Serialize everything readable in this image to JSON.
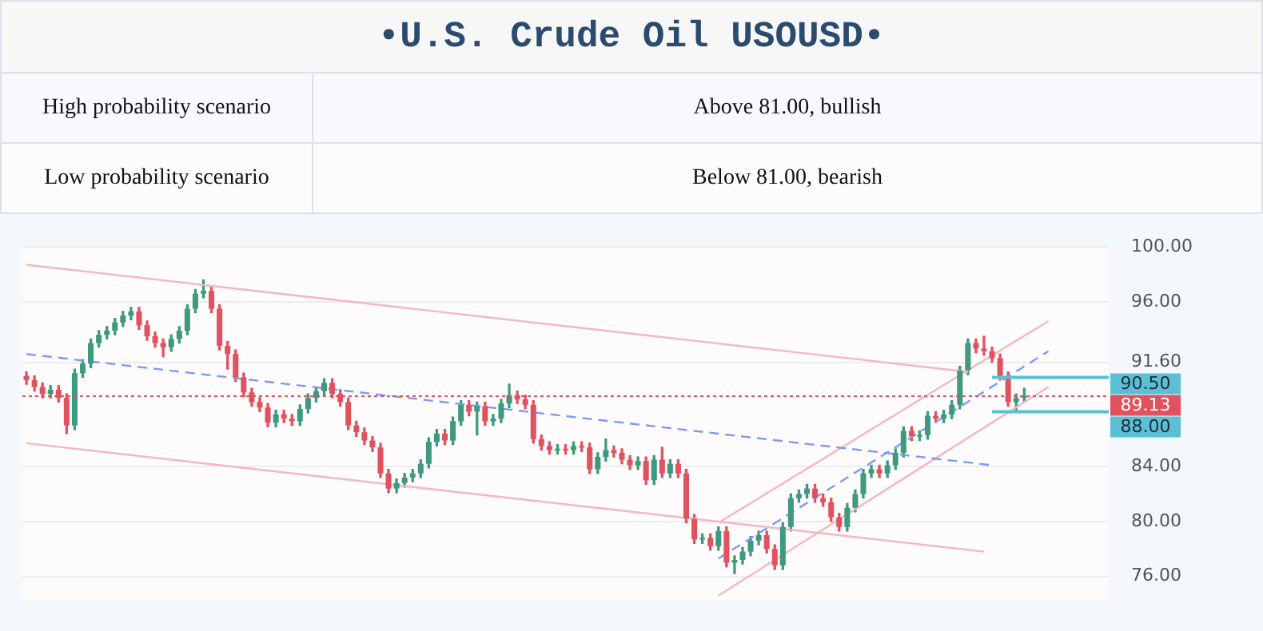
{
  "chart_data": {
    "type": "candlestick",
    "title": "•U.S. Crude Oil USOUSD•",
    "annotations": [
      "High probability scenario",
      "Above 81.00, bullish",
      "Low probability scenario",
      "Below 81.00, bearish"
    ],
    "categories": [
      null,
      null,
      null,
      null,
      null,
      null,
      null,
      null,
      null,
      null,
      null,
      null,
      null,
      null,
      null,
      null,
      null,
      null,
      null,
      null,
      null,
      null,
      null,
      null,
      null,
      null,
      null,
      null,
      null,
      null,
      null,
      null,
      null,
      null,
      null,
      null,
      null,
      null,
      null,
      null,
      null,
      null,
      null,
      null,
      null,
      null,
      null,
      null,
      null,
      null,
      null,
      null,
      null,
      null,
      null,
      null,
      null,
      null,
      null,
      null,
      null,
      null,
      null,
      null,
      null,
      null,
      null,
      null,
      null,
      null,
      null,
      null,
      null,
      null,
      null,
      null,
      null,
      null,
      null,
      null,
      null,
      null,
      null,
      null,
      null,
      null,
      null,
      null,
      null,
      null,
      null,
      null,
      null,
      null,
      null,
      null,
      null,
      null,
      null,
      null,
      null,
      null,
      null,
      null,
      null,
      null,
      null,
      null,
      null,
      null,
      null,
      null,
      null,
      null,
      null,
      null,
      null,
      null,
      null,
      null,
      null,
      null,
      null,
      null,
      null,
      null,
      null,
      null,
      null,
      null,
      null,
      null,
      null,
      null,
      null
    ],
    "ylim": [
      74.3,
      100
    ],
    "yticks": [
      {
        "value": 76,
        "label": "76.00"
      },
      {
        "value": 80,
        "label": "80.00"
      },
      {
        "value": 84,
        "label": "84.00"
      },
      {
        "value": 91.6,
        "label": "91.60"
      },
      {
        "value": 96,
        "label": "96.00"
      },
      {
        "value": 100,
        "label": "100.00"
      }
    ],
    "grid": "y",
    "legend": false,
    "tick_labels": "y",
    "ref_lines": [
      {
        "axis": "y",
        "value": 90.5,
        "label": "90.50",
        "color": "#5bbfd6",
        "line_style": "solid"
      },
      {
        "axis": "y",
        "value": 88,
        "label": "88.00",
        "color": "#5bbfd6",
        "line_style": "solid"
      },
      {
        "axis": "y",
        "value": 89.13,
        "label": "89.13",
        "color": "#e0525e",
        "line_style": "dotted"
      }
    ],
    "series": [
      {
        "colors": [
          "#e0525e",
          "#e0525e",
          "#e0525e",
          "#3d9a7e",
          "#e0525e",
          "#e0525e",
          "#3d9a7e",
          "#3d9a7e",
          "#3d9a7e",
          "#3d9a7e",
          "#3d9a7e",
          "#3d9a7e",
          "#3d9a7e",
          "#3d9a7e",
          "#e0525e",
          "#e0525e",
          "#e0525e",
          "#e0525e",
          "#3d9a7e",
          "#3d9a7e",
          "#3d9a7e",
          "#3d9a7e",
          "#3d9a7e",
          "#e0525e",
          "#e0525e",
          "#e0525e",
          "#e0525e",
          "#e0525e",
          "#e0525e",
          "#e0525e",
          "#e0525e",
          "#3d9a7e",
          "#e0525e",
          "#e0525e",
          "#3d9a7e",
          "#3d9a7e",
          "#3d9a7e",
          "#3d9a7e",
          "#e0525e",
          "#e0525e",
          "#e0525e",
          "#e0525e",
          "#e0525e",
          "#e0525e",
          "#e0525e",
          "#e0525e",
          "#3d9a7e",
          "#3d9a7e",
          "#3d9a7e",
          "#3d9a7e",
          "#3d9a7e",
          "#3d9a7e",
          "#e0525e",
          "#3d9a7e",
          "#3d9a7e",
          "#e0525e",
          "#3d9a7e",
          "#e0525e",
          "#3d9a7e",
          "#3d9a7e",
          "#3d9a7e",
          "#e0525e",
          "#e0525e",
          "#e0525e",
          "#e0525e",
          "#e0525e",
          "#3d9a7e",
          "#e0525e",
          "#3d9a7e",
          "#e0525e",
          "#e0525e",
          "#3d9a7e",
          "#3d9a7e",
          "#e0525e",
          "#e0525e",
          "#e0525e",
          "#3d9a7e",
          "#e0525e",
          "#3d9a7e",
          "#e0525e",
          "#3d9a7e",
          "#e0525e",
          "#e0525e",
          "#e0525e",
          "#3d9a7e",
          "#e0525e",
          "#3d9a7e",
          "#e0525e",
          "#3d9a7e",
          "#3d9a7e",
          "#3d9a7e",
          "#3d9a7e",
          "#e0525e",
          "#e0525e",
          "#3d9a7e",
          "#3d9a7e",
          "#3d9a7e",
          "#3d9a7e",
          "#e0525e",
          "#e0525e",
          "#e0525e",
          "#e0525e",
          "#3d9a7e",
          "#3d9a7e",
          "#3d9a7e",
          "#3d9a7e",
          "#e0525e",
          "#3d9a7e",
          "#3d9a7e",
          "#3d9a7e",
          "#e0525e",
          "#3d9a7e",
          "#3d9a7e",
          "#e0525e",
          "#3d9a7e",
          "#3d9a7e",
          "#3d9a7e",
          "#3d9a7e",
          "#e0525e",
          "#e0525e",
          "#e0525e",
          "#e0525e",
          "#e0525e",
          "#3d9a7e",
          "#3d9a7e",
          null,
          null,
          null,
          null,
          null,
          null,
          null,
          null,
          null,
          null
        ],
        "ohlc": [
          [
            90.6,
            90.9,
            90.0,
            90.3
          ],
          [
            90.3,
            90.6,
            89.5,
            89.8
          ],
          [
            89.8,
            90.1,
            89.0,
            89.3
          ],
          [
            89.3,
            89.9,
            89.0,
            89.6
          ],
          [
            89.6,
            89.9,
            88.7,
            89.0
          ],
          [
            89.0,
            89.3,
            86.4,
            87.0
          ],
          [
            87.0,
            91.1,
            86.7,
            90.8
          ],
          [
            90.8,
            91.8,
            90.5,
            91.5
          ],
          [
            91.5,
            93.3,
            91.2,
            93.0
          ],
          [
            93.0,
            93.9,
            92.7,
            93.6
          ],
          [
            93.6,
            94.2,
            93.3,
            93.9
          ],
          [
            93.9,
            94.8,
            93.6,
            94.5
          ],
          [
            94.5,
            95.3,
            94.2,
            95.0
          ],
          [
            95.0,
            95.6,
            94.7,
            95.3
          ],
          [
            95.3,
            95.6,
            94.0,
            94.3
          ],
          [
            94.3,
            94.6,
            93.2,
            93.5
          ],
          [
            93.5,
            93.8,
            92.7,
            93.0
          ],
          [
            93.0,
            93.3,
            92.0,
            92.7
          ],
          [
            92.7,
            93.6,
            92.4,
            93.3
          ],
          [
            93.3,
            94.2,
            93.0,
            93.9
          ],
          [
            93.9,
            95.8,
            93.6,
            95.5
          ],
          [
            95.5,
            96.9,
            95.2,
            96.6
          ],
          [
            96.6,
            97.6,
            96.3,
            96.8
          ],
          [
            96.8,
            97.1,
            95.2,
            95.5
          ],
          [
            95.5,
            95.8,
            92.5,
            92.8
          ],
          [
            92.8,
            93.1,
            91.1,
            92.2
          ],
          [
            92.2,
            92.5,
            90.2,
            90.5
          ],
          [
            90.5,
            90.8,
            89.1,
            89.4
          ],
          [
            89.4,
            89.7,
            88.4,
            88.7
          ],
          [
            88.7,
            89.0,
            88.0,
            88.3
          ],
          [
            88.3,
            88.6,
            86.9,
            87.2
          ],
          [
            87.2,
            88.1,
            86.9,
            87.8
          ],
          [
            87.8,
            88.1,
            87.2,
            87.5
          ],
          [
            87.5,
            87.8,
            87.0,
            87.3
          ],
          [
            87.3,
            88.5,
            87.0,
            88.2
          ],
          [
            88.2,
            89.3,
            87.9,
            89.0
          ],
          [
            89.0,
            89.8,
            88.7,
            89.5
          ],
          [
            89.5,
            90.4,
            89.2,
            90.1
          ],
          [
            90.1,
            90.4,
            89.0,
            89.3
          ],
          [
            89.3,
            89.6,
            88.4,
            88.7
          ],
          [
            88.7,
            89.0,
            86.7,
            87.0
          ],
          [
            87.0,
            87.3,
            86.2,
            86.5
          ],
          [
            86.5,
            86.8,
            85.6,
            85.9
          ],
          [
            85.9,
            86.2,
            85.1,
            85.4
          ],
          [
            85.4,
            85.7,
            83.2,
            83.5
          ],
          [
            83.5,
            83.8,
            82.1,
            82.4
          ],
          [
            82.4,
            83.1,
            82.1,
            82.8
          ],
          [
            82.8,
            83.5,
            82.5,
            83.2
          ],
          [
            83.2,
            83.8,
            82.9,
            83.5
          ],
          [
            83.5,
            84.5,
            83.2,
            84.2
          ],
          [
            84.2,
            86.1,
            83.9,
            85.8
          ],
          [
            85.8,
            86.7,
            85.5,
            86.4
          ],
          [
            86.4,
            86.7,
            85.6,
            85.9
          ],
          [
            85.9,
            87.6,
            85.6,
            87.3
          ],
          [
            87.3,
            88.8,
            87.0,
            88.5
          ],
          [
            88.5,
            88.8,
            87.7,
            88.0
          ],
          [
            88.0,
            88.7,
            86.3,
            88.4
          ],
          [
            88.4,
            88.7,
            87.0,
            87.3
          ],
          [
            87.3,
            87.8,
            87.0,
            87.5
          ],
          [
            87.5,
            88.9,
            87.2,
            88.6
          ],
          [
            88.6,
            90.0,
            88.3,
            89.2
          ],
          [
            89.2,
            89.5,
            88.6,
            88.9
          ],
          [
            88.9,
            89.2,
            88.2,
            88.5
          ],
          [
            88.5,
            88.8,
            85.7,
            86.0
          ],
          [
            86.0,
            86.3,
            85.2,
            85.5
          ],
          [
            85.5,
            85.8,
            84.9,
            85.2
          ],
          [
            85.2,
            85.6,
            84.9,
            85.3
          ],
          [
            85.3,
            85.6,
            84.9,
            85.2
          ],
          [
            85.2,
            85.8,
            84.9,
            85.5
          ],
          [
            85.5,
            85.8,
            85.1,
            85.4
          ],
          [
            85.4,
            85.7,
            83.5,
            83.8
          ],
          [
            83.8,
            85.0,
            83.5,
            84.7
          ],
          [
            84.7,
            86.0,
            84.4,
            85.2
          ],
          [
            85.2,
            85.5,
            84.7,
            85.0
          ],
          [
            85.0,
            85.3,
            84.2,
            84.5
          ],
          [
            84.5,
            84.8,
            83.8,
            84.1
          ],
          [
            84.1,
            84.7,
            83.8,
            84.4
          ],
          [
            84.4,
            84.7,
            82.7,
            83.0
          ],
          [
            83.0,
            84.8,
            82.7,
            84.5
          ],
          [
            84.5,
            85.4,
            83.2,
            83.5
          ],
          [
            83.5,
            84.5,
            83.2,
            84.2
          ],
          [
            84.2,
            84.5,
            83.2,
            83.5
          ],
          [
            83.5,
            83.8,
            79.9,
            80.2
          ],
          [
            80.2,
            80.5,
            78.4,
            78.7
          ],
          [
            78.7,
            79.1,
            78.4,
            78.8
          ],
          [
            78.8,
            79.1,
            77.9,
            78.2
          ],
          [
            78.2,
            79.6,
            77.9,
            79.3
          ],
          [
            79.3,
            79.6,
            76.7,
            77.0
          ],
          [
            77.0,
            77.5,
            76.2,
            77.2
          ],
          [
            77.2,
            78.1,
            76.9,
            77.8
          ],
          [
            77.8,
            78.9,
            77.5,
            78.6
          ],
          [
            78.6,
            79.3,
            78.3,
            79.0
          ],
          [
            79.0,
            79.3,
            77.7,
            78.0
          ],
          [
            78.0,
            78.3,
            76.5,
            76.8
          ],
          [
            76.8,
            79.9,
            76.5,
            79.6
          ],
          [
            79.6,
            82.0,
            79.3,
            81.7
          ],
          [
            81.7,
            82.3,
            81.4,
            82.0
          ],
          [
            82.0,
            82.7,
            81.7,
            82.4
          ],
          [
            82.4,
            82.7,
            81.4,
            81.7
          ],
          [
            81.7,
            82.0,
            81.1,
            81.4
          ],
          [
            81.4,
            81.7,
            80.0,
            80.3
          ],
          [
            80.3,
            80.6,
            79.3,
            79.6
          ],
          [
            79.6,
            81.3,
            79.3,
            81.0
          ],
          [
            81.0,
            82.3,
            80.7,
            82.0
          ],
          [
            82.0,
            83.8,
            81.7,
            83.5
          ],
          [
            83.5,
            84.1,
            83.2,
            83.8
          ],
          [
            83.8,
            84.1,
            83.2,
            83.5
          ],
          [
            83.5,
            84.4,
            83.2,
            84.1
          ],
          [
            84.1,
            85.3,
            83.8,
            85.0
          ],
          [
            85.0,
            86.9,
            84.7,
            86.6
          ],
          [
            86.6,
            86.9,
            85.9,
            86.2
          ],
          [
            86.2,
            86.6,
            85.9,
            86.3
          ],
          [
            86.3,
            88.0,
            86.0,
            87.7
          ],
          [
            87.7,
            88.0,
            87.2,
            87.5
          ],
          [
            87.5,
            88.1,
            87.2,
            87.8
          ],
          [
            87.8,
            88.8,
            87.5,
            88.5
          ],
          [
            88.5,
            91.3,
            88.2,
            91.0
          ],
          [
            91.0,
            93.3,
            90.7,
            93.0
          ],
          [
            93.0,
            93.3,
            92.3,
            92.6
          ],
          [
            92.6,
            93.5,
            92.1,
            92.4
          ],
          [
            92.4,
            92.7,
            91.6,
            91.9
          ],
          [
            91.9,
            92.2,
            90.3,
            90.6
          ],
          [
            90.6,
            90.9,
            88.4,
            88.7
          ],
          [
            88.7,
            89.3,
            88.0,
            89.0
          ],
          [
            89.0,
            89.7,
            88.7,
            89.13
          ],
          null,
          null,
          null,
          null,
          null,
          null,
          null,
          null,
          null,
          null
        ]
      },
      {
        "type": "line",
        "color": "#f2b8be",
        "line_style": "solid",
        "values": [
          98.7,
          null,
          null,
          null,
          null,
          null,
          null,
          null,
          null,
          null,
          null,
          null,
          null,
          null,
          null,
          null,
          null,
          null,
          null,
          null,
          null,
          null,
          null,
          null,
          null,
          null,
          null,
          null,
          null,
          null,
          null,
          null,
          null,
          null,
          null,
          null,
          null,
          null,
          null,
          null,
          null,
          null,
          null,
          null,
          null,
          null,
          null,
          null,
          null,
          null,
          null,
          null,
          null,
          null,
          null,
          null,
          null,
          null,
          null,
          null,
          null,
          null,
          null,
          null,
          null,
          null,
          null,
          null,
          null,
          null,
          null,
          null,
          null,
          null,
          null,
          null,
          null,
          null,
          null,
          null,
          null,
          null,
          null,
          null,
          null,
          null,
          null,
          null,
          null,
          null,
          null,
          null,
          null,
          null,
          null,
          null,
          null,
          null,
          null,
          null,
          null,
          null,
          null,
          null,
          null,
          null,
          null,
          null,
          null,
          null,
          null,
          null,
          null,
          null,
          null,
          null,
          null,
          90.9,
          null,
          null,
          null,
          null,
          null,
          null,
          null,
          null,
          null,
          null,
          null,
          null,
          null,
          null,
          null,
          null,
          null
        ]
      },
      {
        "type": "line",
        "color": "#f2b8be",
        "line_style": "solid",
        "values": [
          85.7,
          null,
          null,
          null,
          null,
          null,
          null,
          null,
          null,
          null,
          null,
          null,
          null,
          null,
          null,
          null,
          null,
          null,
          null,
          null,
          null,
          null,
          null,
          null,
          null,
          null,
          null,
          null,
          null,
          null,
          null,
          null,
          null,
          null,
          null,
          null,
          null,
          null,
          null,
          null,
          null,
          null,
          null,
          null,
          null,
          null,
          null,
          null,
          null,
          null,
          null,
          null,
          null,
          null,
          null,
          null,
          null,
          null,
          null,
          null,
          null,
          null,
          null,
          null,
          null,
          null,
          null,
          null,
          null,
          null,
          null,
          null,
          null,
          null,
          null,
          null,
          null,
          null,
          null,
          null,
          null,
          null,
          null,
          null,
          null,
          null,
          null,
          null,
          null,
          null,
          null,
          null,
          null,
          null,
          null,
          null,
          null,
          null,
          null,
          null,
          null,
          null,
          null,
          null,
          null,
          null,
          null,
          null,
          null,
          null,
          null,
          null,
          null,
          null,
          null,
          null,
          null,
          null,
          null,
          77.8,
          null,
          null,
          null,
          null,
          null,
          null,
          null,
          null,
          null,
          null,
          null,
          null,
          null,
          null,
          null
        ]
      },
      {
        "type": "line",
        "color": "#7d9cf0",
        "line_style": "dashed",
        "values": [
          92.2,
          null,
          null,
          null,
          null,
          null,
          null,
          null,
          null,
          null,
          null,
          null,
          null,
          null,
          null,
          null,
          null,
          null,
          null,
          null,
          null,
          null,
          null,
          null,
          null,
          null,
          null,
          null,
          null,
          null,
          null,
          null,
          null,
          null,
          null,
          null,
          null,
          null,
          null,
          null,
          null,
          null,
          null,
          null,
          null,
          null,
          null,
          null,
          null,
          null,
          null,
          null,
          null,
          null,
          null,
          null,
          null,
          null,
          null,
          null,
          null,
          null,
          null,
          null,
          null,
          null,
          null,
          null,
          null,
          null,
          null,
          null,
          null,
          null,
          null,
          null,
          null,
          null,
          null,
          null,
          null,
          null,
          null,
          null,
          null,
          null,
          null,
          null,
          null,
          null,
          null,
          null,
          null,
          null,
          null,
          null,
          null,
          null,
          null,
          null,
          null,
          null,
          null,
          null,
          null,
          null,
          null,
          null,
          null,
          null,
          null,
          null,
          null,
          null,
          null,
          null,
          null,
          null,
          null,
          null,
          84.1,
          null,
          null,
          null,
          null,
          null,
          null,
          null,
          null,
          null,
          null,
          null,
          null,
          null,
          null
        ]
      },
      {
        "type": "line",
        "color": "#f2b8be",
        "line_style": "solid",
        "values": [
          null,
          null,
          null,
          null,
          null,
          null,
          null,
          null,
          null,
          null,
          null,
          null,
          null,
          null,
          null,
          null,
          null,
          null,
          null,
          null,
          null,
          null,
          null,
          null,
          null,
          null,
          null,
          null,
          null,
          null,
          null,
          null,
          null,
          null,
          null,
          null,
          null,
          null,
          null,
          null,
          null,
          null,
          null,
          null,
          null,
          null,
          null,
          null,
          null,
          null,
          null,
          null,
          null,
          null,
          null,
          null,
          null,
          null,
          null,
          null,
          null,
          null,
          null,
          null,
          null,
          null,
          null,
          null,
          null,
          null,
          null,
          null,
          null,
          null,
          null,
          null,
          null,
          null,
          null,
          null,
          null,
          null,
          null,
          null,
          null,
          null,
          79.9,
          null,
          null,
          null,
          null,
          null,
          null,
          null,
          null,
          null,
          null,
          null,
          null,
          null,
          null,
          null,
          null,
          null,
          null,
          null,
          null,
          null,
          null,
          null,
          null,
          null,
          null,
          null,
          null,
          null,
          null,
          null,
          null,
          null,
          null,
          null,
          null,
          null,
          null,
          null,
          null,
          94.6,
          null,
          null,
          null,
          null,
          null,
          null,
          null
        ]
      },
      {
        "type": "line",
        "color": "#f2b8be",
        "line_style": "solid",
        "values": [
          null,
          null,
          null,
          null,
          null,
          null,
          null,
          null,
          null,
          null,
          null,
          null,
          null,
          null,
          null,
          null,
          null,
          null,
          null,
          null,
          null,
          null,
          null,
          null,
          null,
          null,
          null,
          null,
          null,
          null,
          null,
          null,
          null,
          null,
          null,
          null,
          null,
          null,
          null,
          null,
          null,
          null,
          null,
          null,
          null,
          null,
          null,
          null,
          null,
          null,
          null,
          null,
          null,
          null,
          null,
          null,
          null,
          null,
          null,
          null,
          null,
          null,
          null,
          null,
          null,
          null,
          null,
          null,
          null,
          null,
          null,
          null,
          null,
          null,
          null,
          null,
          null,
          null,
          null,
          null,
          null,
          null,
          null,
          null,
          null,
          null,
          74.6,
          null,
          null,
          null,
          null,
          null,
          null,
          null,
          null,
          null,
          null,
          null,
          null,
          null,
          null,
          null,
          null,
          null,
          null,
          null,
          null,
          null,
          null,
          null,
          null,
          null,
          null,
          null,
          null,
          null,
          null,
          null,
          null,
          null,
          null,
          null,
          null,
          null,
          null,
          null,
          null,
          89.8,
          null,
          null,
          null,
          null,
          null,
          null,
          null
        ]
      },
      {
        "type": "line",
        "color": "#7d9cf0",
        "line_style": "dashed",
        "values": [
          null,
          null,
          null,
          null,
          null,
          null,
          null,
          null,
          null,
          null,
          null,
          null,
          null,
          null,
          null,
          null,
          null,
          null,
          null,
          null,
          null,
          null,
          null,
          null,
          null,
          null,
          null,
          null,
          null,
          null,
          null,
          null,
          null,
          null,
          null,
          null,
          null,
          null,
          null,
          null,
          null,
          null,
          null,
          null,
          null,
          null,
          null,
          null,
          null,
          null,
          null,
          null,
          null,
          null,
          null,
          null,
          null,
          null,
          null,
          null,
          null,
          null,
          null,
          null,
          null,
          null,
          null,
          null,
          null,
          null,
          null,
          null,
          null,
          null,
          null,
          null,
          null,
          null,
          null,
          null,
          null,
          null,
          null,
          null,
          null,
          null,
          77.3,
          null,
          null,
          null,
          null,
          null,
          null,
          null,
          null,
          null,
          null,
          null,
          null,
          null,
          null,
          null,
          null,
          null,
          null,
          null,
          null,
          null,
          null,
          null,
          null,
          null,
          null,
          null,
          null,
          null,
          null,
          null,
          null,
          null,
          null,
          null,
          null,
          null,
          null,
          null,
          null,
          92.4,
          null,
          null,
          null,
          null,
          null,
          null,
          null
        ]
      }
    ]
  }
}
